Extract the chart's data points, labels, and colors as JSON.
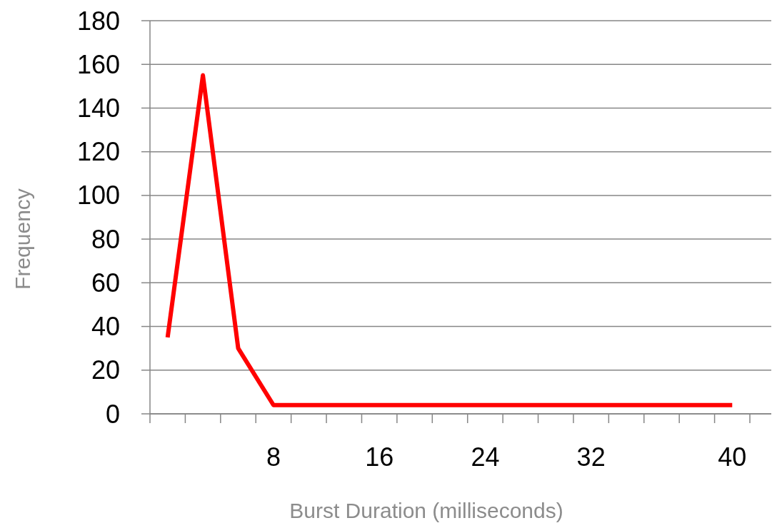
{
  "chart_data": {
    "type": "line",
    "xlabel": "Burst Duration (milliseconds)",
    "ylabel": "Frequency",
    "categories": [
      null,
      null,
      null,
      "8",
      null,
      null,
      "16",
      null,
      null,
      "24",
      null,
      null,
      "32",
      null,
      null,
      null,
      "40"
    ],
    "series": [
      {
        "color": "#ff0000",
        "values": [
          35,
          155,
          30,
          4,
          4,
          4,
          4,
          4,
          4,
          4,
          4,
          4,
          4,
          4,
          4,
          4,
          4
        ]
      }
    ],
    "ylim": [
      0,
      180
    ],
    "yticks": [
      0,
      20,
      40,
      60,
      80,
      100,
      120,
      140,
      160,
      180
    ],
    "grid": "y",
    "marker": "none",
    "line_style": "solid"
  }
}
